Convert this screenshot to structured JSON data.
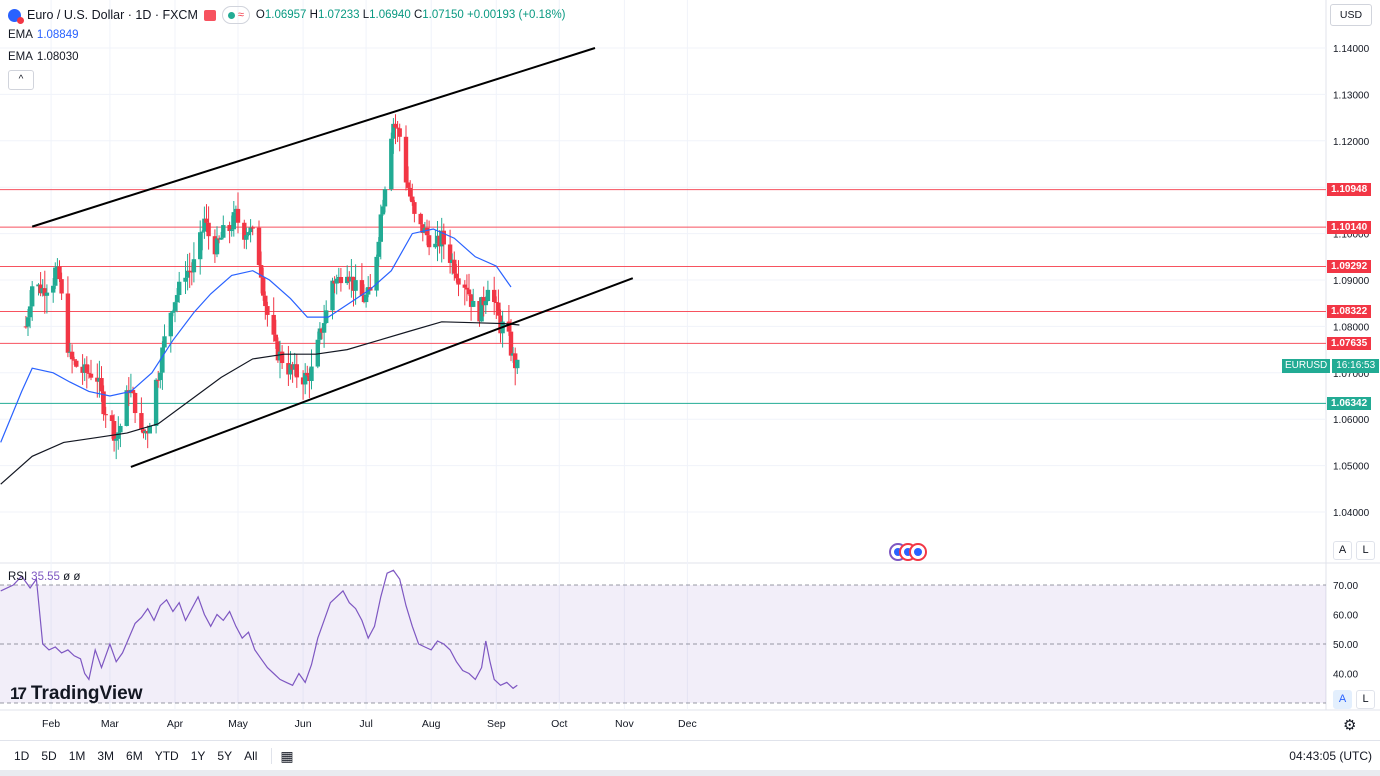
{
  "header": {
    "symbol": "Euro / U.S. Dollar · 1D · FXCM",
    "open_label": "O",
    "open": "1.06957",
    "high_label": "H",
    "high": "1.07233",
    "low_label": "L",
    "low": "1.06940",
    "close_label": "C",
    "close": "1.07150",
    "change": "+0.00193 (+0.18%)"
  },
  "indicators": {
    "ema1_label": "EMA",
    "ema1_value": "1.08849",
    "ema2_label": "EMA",
    "ema2_value": "1.08030",
    "rsi_label": "RSI",
    "rsi_value": "35.55",
    "rsi_extra": "ø ø"
  },
  "currency": "USD",
  "symbol_tag": "EURUSD",
  "countdown": "16:16:53",
  "brand": "TradingView",
  "timeframes": [
    "1D",
    "5D",
    "1M",
    "3M",
    "6M",
    "YTD",
    "1Y",
    "5Y",
    "All"
  ],
  "clock": "04:43:05 (UTC)",
  "scale_buttons": {
    "auto": "A",
    "log": "L"
  },
  "colors": {
    "up": "#22ab94",
    "down": "#f23645",
    "ema_fast": "#2962ff",
    "ema_slow": "#131722",
    "rsi": "#7e57c2",
    "resistance": "#f7525f",
    "support": "#22ab94"
  },
  "chart_data": {
    "type": "candlestick",
    "title": "Euro / U.S. Dollar · 1D · FXCM",
    "price_ticks": [
      1.14,
      1.13,
      1.12,
      1.11,
      1.1,
      1.09,
      1.08,
      1.07,
      1.06,
      1.05,
      1.04
    ],
    "price_tick_labels": [
      "1.14000",
      "1.13000",
      "1.12000",
      "1.11000",
      "1.10000",
      "1.09000",
      "1.08000",
      "1.07000",
      "1.06000",
      "1.05000",
      "1.04000"
    ],
    "months": [
      "Feb",
      "Mar",
      "Apr",
      "May",
      "Jun",
      "Jul",
      "Aug",
      "Sep",
      "Oct",
      "Nov",
      "Dec"
    ],
    "month_day_index": [
      24,
      52,
      83,
      113,
      144,
      174,
      205,
      236,
      266,
      297,
      327
    ],
    "last_close_label": "1.07150",
    "horizontal_levels": [
      {
        "price": 1.10948,
        "label": "1.10948",
        "kind": "resistance"
      },
      {
        "price": 1.1014,
        "label": "1.10140",
        "kind": "resistance"
      },
      {
        "price": 1.09292,
        "label": "1.09292",
        "kind": "resistance"
      },
      {
        "price": 1.08322,
        "label": "1.08322",
        "kind": "resistance"
      },
      {
        "price": 1.07635,
        "label": "1.07635",
        "kind": "resistance"
      },
      {
        "price": 1.06342,
        "label": "1.06342",
        "kind": "support"
      }
    ],
    "trendlines": [
      {
        "name": "upper-channel",
        "from": [
          15,
          1.1015
        ],
        "to": [
          283,
          1.14
        ]
      },
      {
        "name": "lower-channel",
        "from": [
          62,
          1.0497
        ],
        "to": [
          301,
          1.0904
        ]
      }
    ],
    "ohlc_path_start_day": 12,
    "ohlc_path_end_day": 247,
    "price_path": [
      [
        12,
        1.08
      ],
      [
        15,
        1.089
      ],
      [
        20,
        1.088
      ],
      [
        25,
        1.09
      ],
      [
        26,
        1.092
      ],
      [
        28,
        1.09
      ],
      [
        30,
        1.082
      ],
      [
        33,
        1.073
      ],
      [
        37,
        1.071
      ],
      [
        40,
        1.07
      ],
      [
        43,
        1.07
      ],
      [
        46,
        1.069
      ],
      [
        49,
        1.063
      ],
      [
        52,
        1.06
      ],
      [
        55,
        1.056
      ],
      [
        58,
        1.06
      ],
      [
        61,
        1.067
      ],
      [
        64,
        1.063
      ],
      [
        66,
        1.056
      ],
      [
        68,
        1.057
      ],
      [
        70,
        1.058
      ],
      [
        72,
        1.062
      ],
      [
        74,
        1.068
      ],
      [
        76,
        1.072
      ],
      [
        78,
        1.077
      ],
      [
        80,
        1.082
      ],
      [
        82,
        1.085
      ],
      [
        85,
        1.088
      ],
      [
        88,
        1.092
      ],
      [
        91,
        1.092
      ],
      [
        94,
        1.096
      ],
      [
        97,
        1.103
      ],
      [
        100,
        1.098
      ],
      [
        103,
        1.097
      ],
      [
        106,
        1.1
      ],
      [
        109,
        1.101
      ],
      [
        112,
        1.104
      ],
      [
        115,
        1.1
      ],
      [
        118,
        1.101
      ],
      [
        121,
        1.099
      ],
      [
        124,
        1.092
      ],
      [
        126,
        1.085
      ],
      [
        128,
        1.08
      ],
      [
        131,
        1.075
      ],
      [
        134,
        1.073
      ],
      [
        137,
        1.071
      ],
      [
        140,
        1.07
      ],
      [
        143,
        1.069
      ],
      [
        146,
        1.069
      ],
      [
        149,
        1.071
      ],
      [
        152,
        1.078
      ],
      [
        155,
        1.083
      ],
      [
        158,
        1.09
      ],
      [
        161,
        1.09
      ],
      [
        164,
        1.094
      ],
      [
        167,
        1.09
      ],
      [
        170,
        1.087
      ],
      [
        173,
        1.086
      ],
      [
        176,
        1.087
      ],
      [
        179,
        1.096
      ],
      [
        181,
        1.104
      ],
      [
        183,
        1.111
      ],
      [
        185,
        1.12
      ],
      [
        187,
        1.124
      ],
      [
        190,
        1.121
      ],
      [
        192,
        1.114
      ],
      [
        195,
        1.108
      ],
      [
        198,
        1.101
      ],
      [
        201,
        1.101
      ],
      [
        204,
        1.099
      ],
      [
        207,
        1.097
      ],
      [
        210,
        1.099
      ],
      [
        213,
        1.096
      ],
      [
        216,
        1.093
      ],
      [
        219,
        1.09
      ],
      [
        222,
        1.089
      ],
      [
        225,
        1.084
      ],
      [
        228,
        1.083
      ],
      [
        231,
        1.087
      ],
      [
        233,
        1.092
      ],
      [
        235,
        1.085
      ],
      [
        238,
        1.08
      ],
      [
        240,
        1.08
      ],
      [
        242,
        1.077
      ],
      [
        244,
        1.073
      ],
      [
        246,
        1.071
      ],
      [
        247,
        1.0715
      ]
    ],
    "ema_fast_path": [
      [
        0,
        1.055
      ],
      [
        10,
        1.066
      ],
      [
        15,
        1.071
      ],
      [
        25,
        1.07
      ],
      [
        33,
        1.068
      ],
      [
        42,
        1.066
      ],
      [
        52,
        1.065
      ],
      [
        62,
        1.066
      ],
      [
        72,
        1.07
      ],
      [
        82,
        1.077
      ],
      [
        92,
        1.083
      ],
      [
        100,
        1.087
      ],
      [
        110,
        1.091
      ],
      [
        120,
        1.092
      ],
      [
        128,
        1.09
      ],
      [
        138,
        1.086
      ],
      [
        146,
        1.082
      ],
      [
        156,
        1.082
      ],
      [
        166,
        1.085
      ],
      [
        176,
        1.088
      ],
      [
        186,
        1.092
      ],
      [
        196,
        1.1
      ],
      [
        206,
        1.101
      ],
      [
        216,
        1.099
      ],
      [
        226,
        1.095
      ],
      [
        236,
        1.093
      ],
      [
        243,
        1.0885
      ]
    ],
    "ema_slow_path": [
      [
        0,
        1.046
      ],
      [
        15,
        1.052
      ],
      [
        30,
        1.055
      ],
      [
        45,
        1.056
      ],
      [
        60,
        1.057
      ],
      [
        75,
        1.059
      ],
      [
        90,
        1.064
      ],
      [
        105,
        1.069
      ],
      [
        120,
        1.073
      ],
      [
        135,
        1.074
      ],
      [
        150,
        1.074
      ],
      [
        165,
        1.075
      ],
      [
        180,
        1.077
      ],
      [
        195,
        1.079
      ],
      [
        210,
        1.081
      ],
      [
        225,
        1.0808
      ],
      [
        240,
        1.0806
      ],
      [
        247,
        1.0803
      ]
    ],
    "rsi": {
      "levels": [
        70,
        50,
        30
      ],
      "ticks": [
        70,
        60,
        50,
        40
      ],
      "tick_labels": [
        "70.00",
        "60.00",
        "50.00",
        "40.00"
      ],
      "path": [
        [
          0,
          68
        ],
        [
          6,
          70
        ],
        [
          10,
          73
        ],
        [
          14,
          69
        ],
        [
          17,
          72
        ],
        [
          20,
          50
        ],
        [
          23,
          48
        ],
        [
          26,
          49
        ],
        [
          29,
          47
        ],
        [
          32,
          48
        ],
        [
          35,
          46
        ],
        [
          38,
          45
        ],
        [
          40,
          40
        ],
        [
          42,
          38
        ],
        [
          45,
          48
        ],
        [
          48,
          42
        ],
        [
          52,
          50
        ],
        [
          55,
          44
        ],
        [
          58,
          47
        ],
        [
          61,
          52
        ],
        [
          64,
          57
        ],
        [
          67,
          59
        ],
        [
          70,
          62
        ],
        [
          73,
          58
        ],
        [
          76,
          63
        ],
        [
          79,
          65
        ],
        [
          82,
          61
        ],
        [
          85,
          64
        ],
        [
          88,
          58
        ],
        [
          91,
          62
        ],
        [
          94,
          66
        ],
        [
          97,
          60
        ],
        [
          100,
          56
        ],
        [
          103,
          60
        ],
        [
          106,
          58
        ],
        [
          109,
          61
        ],
        [
          112,
          56
        ],
        [
          115,
          52
        ],
        [
          118,
          54
        ],
        [
          121,
          48
        ],
        [
          124,
          45
        ],
        [
          127,
          42
        ],
        [
          130,
          40
        ],
        [
          133,
          38
        ],
        [
          136,
          37
        ],
        [
          139,
          36
        ],
        [
          142,
          40
        ],
        [
          145,
          37
        ],
        [
          148,
          43
        ],
        [
          151,
          52
        ],
        [
          154,
          58
        ],
        [
          157,
          64
        ],
        [
          160,
          66
        ],
        [
          163,
          68
        ],
        [
          166,
          64
        ],
        [
          169,
          62
        ],
        [
          172,
          58
        ],
        [
          175,
          52
        ],
        [
          178,
          56
        ],
        [
          181,
          66
        ],
        [
          184,
          74
        ],
        [
          187,
          75
        ],
        [
          190,
          72
        ],
        [
          193,
          63
        ],
        [
          196,
          56
        ],
        [
          199,
          50
        ],
        [
          202,
          49
        ],
        [
          205,
          48
        ],
        [
          208,
          51
        ],
        [
          211,
          50
        ],
        [
          214,
          48
        ],
        [
          217,
          44
        ],
        [
          220,
          41
        ],
        [
          223,
          40
        ],
        [
          226,
          38
        ],
        [
          229,
          42
        ],
        [
          231,
          51
        ],
        [
          233,
          44
        ],
        [
          235,
          38
        ],
        [
          238,
          36
        ],
        [
          241,
          37
        ],
        [
          244,
          35
        ],
        [
          246,
          36
        ]
      ]
    }
  }
}
